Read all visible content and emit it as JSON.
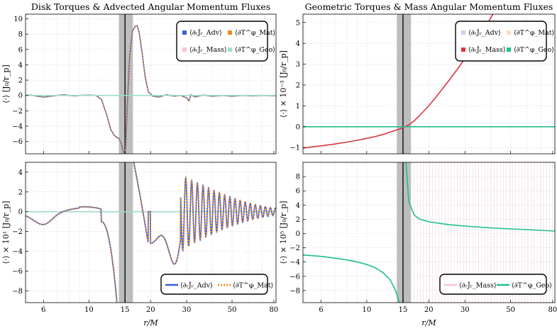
{
  "chart_data": [
    {
      "type": "line",
      "panel": "top-left",
      "title": "Disk Torques & Advected Angular Momentum Fluxes",
      "ylabel": "⟨·⟩ [J₀/r_p]",
      "xscale": "log",
      "xlim": [
        4.9,
        82
      ],
      "ylim": [
        -7.6,
        10.6
      ],
      "yticks": [
        -6,
        -4,
        -2,
        0,
        2,
        4,
        6,
        8,
        10
      ],
      "shaded_band": [
        14.0,
        16.4
      ],
      "vline": 15,
      "legend_position": "top-right",
      "legend": [
        "⟨∂ᵣJ̇ᵣ_Adv⟩",
        "⟨∂T^φ_Mat⟩",
        "⟨∂ᵣJ̇ᵣ_Mass⟩",
        "⟨∂T^φ_Geo⟩"
      ],
      "series": [
        {
          "name": "⟨∂ᵣJ̇ᵣ_Adv⟩",
          "color": "#3a5fd9",
          "style": "solid",
          "points": [
            [
              4.9,
              0.0
            ],
            [
              5.2,
              0.05
            ],
            [
              5.6,
              -0.1
            ],
            [
              6.0,
              -0.2
            ],
            [
              6.5,
              -0.1
            ],
            [
              7.0,
              0.0
            ],
            [
              7.5,
              0.1
            ],
            [
              8.0,
              0.0
            ],
            [
              8.5,
              -0.05
            ],
            [
              9.0,
              0.0
            ],
            [
              10.0,
              0.05
            ],
            [
              10.8,
              0.0
            ],
            [
              11.5,
              -0.5
            ],
            [
              12.2,
              -2.5
            ],
            [
              12.8,
              -4.5
            ],
            [
              13.4,
              -5.3
            ],
            [
              14.0,
              -5.6
            ],
            [
              14.4,
              -6.3
            ],
            [
              14.8,
              -7.6
            ],
            [
              15.1,
              -7.0
            ],
            [
              15.4,
              -1.0
            ],
            [
              15.8,
              5.0
            ],
            [
              16.3,
              8.4
            ],
            [
              16.8,
              9.0
            ],
            [
              17.2,
              9.1
            ],
            [
              17.6,
              8.2
            ],
            [
              18.2,
              5.5
            ],
            [
              18.8,
              2.5
            ],
            [
              19.5,
              0.5
            ],
            [
              20.5,
              -0.1
            ],
            [
              22.0,
              -0.2
            ],
            [
              24.0,
              0.1
            ],
            [
              26.0,
              -0.1
            ],
            [
              28.0,
              0.0
            ],
            [
              30.0,
              -0.3
            ],
            [
              30.8,
              -0.7
            ],
            [
              31.5,
              0.1
            ],
            [
              33.0,
              -0.2
            ],
            [
              36.0,
              0.05
            ],
            [
              40.0,
              -0.1
            ],
            [
              45.0,
              0.0
            ],
            [
              50.0,
              -0.1
            ],
            [
              56.0,
              0.0
            ],
            [
              63.0,
              -0.05
            ],
            [
              70.0,
              0.0
            ],
            [
              82.0,
              -0.05
            ]
          ]
        },
        {
          "name": "⟨∂T^φ_Mat⟩",
          "color": "#f08a1d",
          "style": "dotted",
          "points": [
            [
              4.9,
              0.0
            ],
            [
              5.2,
              0.05
            ],
            [
              5.6,
              -0.1
            ],
            [
              6.0,
              -0.2
            ],
            [
              6.5,
              -0.1
            ],
            [
              7.0,
              0.0
            ],
            [
              7.5,
              0.1
            ],
            [
              8.0,
              0.0
            ],
            [
              8.5,
              -0.05
            ],
            [
              9.0,
              0.0
            ],
            [
              10.0,
              0.05
            ],
            [
              10.8,
              0.0
            ],
            [
              11.5,
              -0.5
            ],
            [
              12.2,
              -2.5
            ],
            [
              12.8,
              -4.5
            ],
            [
              13.4,
              -5.3
            ],
            [
              14.0,
              -5.6
            ],
            [
              14.4,
              -6.3
            ],
            [
              14.8,
              -7.6
            ],
            [
              15.1,
              -7.0
            ],
            [
              15.4,
              -1.0
            ],
            [
              15.8,
              5.0
            ],
            [
              16.3,
              8.4
            ],
            [
              16.8,
              9.0
            ],
            [
              17.2,
              9.1
            ],
            [
              17.6,
              8.2
            ],
            [
              18.2,
              5.5
            ],
            [
              18.8,
              2.5
            ],
            [
              19.5,
              0.5
            ],
            [
              20.5,
              -0.1
            ],
            [
              22.0,
              -0.2
            ],
            [
              24.0,
              0.1
            ],
            [
              26.0,
              -0.1
            ],
            [
              28.0,
              0.0
            ],
            [
              30.0,
              -0.3
            ],
            [
              30.8,
              -0.7
            ],
            [
              31.5,
              0.1
            ],
            [
              33.0,
              -0.2
            ],
            [
              36.0,
              0.05
            ],
            [
              40.0,
              -0.1
            ],
            [
              45.0,
              0.0
            ],
            [
              50.0,
              -0.1
            ],
            [
              56.0,
              0.0
            ],
            [
              63.0,
              -0.05
            ],
            [
              70.0,
              0.0
            ],
            [
              82.0,
              -0.05
            ]
          ]
        },
        {
          "name": "⟨∂T^φ_Geo⟩",
          "color": "#9fdcc9",
          "style": "solid",
          "points": [
            [
              4.9,
              0.0
            ],
            [
              14.9,
              0.0
            ],
            [
              15.3,
              0.0
            ],
            [
              82.0,
              0.0
            ]
          ]
        }
      ]
    },
    {
      "type": "line",
      "panel": "top-right",
      "title": "Geometric Torques & Mass Angular Momentum Fluxes",
      "ylabel": "⟨·⟩ × 10⁻³ [J₀/r_p]",
      "xscale": "log",
      "xlim": [
        4.9,
        82
      ],
      "ylim": [
        -1.3,
        5.4
      ],
      "yticks": [
        -1,
        0,
        1,
        2,
        3,
        4,
        5
      ],
      "shaded_band": [
        14.0,
        16.4
      ],
      "vline": 15,
      "legend_position": "top-right",
      "legend": [
        "⟨∂ᵣJ̇ᵣ_Adv⟩",
        "⟨∂T^φ_Mat⟩",
        "⟨∂ᵣJ̇ᵣ_Mass⟩",
        "⟨∂T^φ_Geo⟩"
      ],
      "series": [
        {
          "name": "⟨∂ᵣJ̇ᵣ_Mass⟩",
          "color": "#d9343d",
          "style": "solid",
          "points": [
            [
              4.9,
              -1.02
            ],
            [
              6.0,
              -0.92
            ],
            [
              7.0,
              -0.83
            ],
            [
              8.0,
              -0.74
            ],
            [
              9.0,
              -0.65
            ],
            [
              10.0,
              -0.56
            ],
            [
              11.0,
              -0.47
            ],
            [
              12.0,
              -0.37
            ],
            [
              13.0,
              -0.26
            ],
            [
              14.0,
              -0.15
            ],
            [
              15.0,
              -0.05
            ],
            [
              16.0,
              0.08
            ],
            [
              17.0,
              0.28
            ],
            [
              18.0,
              0.52
            ],
            [
              20.0,
              1.0
            ],
            [
              22.0,
              1.5
            ],
            [
              25.0,
              2.2
            ],
            [
              28.0,
              2.85
            ],
            [
              31.0,
              3.5
            ],
            [
              35.0,
              4.3
            ],
            [
              38.0,
              4.85
            ],
            [
              41.0,
              5.4
            ]
          ]
        },
        {
          "name": "⟨∂T^φ_Geo⟩",
          "color": "#1fbf8f",
          "style": "solid",
          "points": [
            [
              4.9,
              0.0
            ],
            [
              82.0,
              0.0
            ]
          ]
        }
      ]
    },
    {
      "type": "line",
      "panel": "bottom-left",
      "ylabel": "⟨·⟩ × 10¹ [J₀/r_p]",
      "xlabel": "r/M",
      "xscale": "log",
      "xlim": [
        4.9,
        82
      ],
      "ylim": [
        -9.2,
        5.0
      ],
      "yticks": [
        -8,
        -6,
        -4,
        -2,
        0,
        2,
        4
      ],
      "xticks": [
        6,
        10,
        15,
        20,
        30,
        50,
        80
      ],
      "shaded_band": [
        14.0,
        16.4
      ],
      "vline": 15,
      "legend_position": "bottom-right",
      "legend": [
        "⟨∂ᵣJ̇ᵣ_Adv⟩",
        "⟨∂T^φ_Mat⟩"
      ],
      "series": [
        {
          "name": "⟨∂ᵣJ̇ᵣ_Adv⟩",
          "color": "#3a5fd9",
          "style": "solid",
          "points": []
        },
        {
          "name": "⟨∂T^φ_Mat⟩",
          "color": "#f08a1d",
          "style": "dotted",
          "points": []
        },
        {
          "name": "⟨∂T^φ_Geo⟩",
          "color": "#9fdcc9",
          "style": "solid",
          "points": [
            [
              4.9,
              0.0
            ],
            [
              82.0,
              0.0
            ]
          ]
        }
      ]
    },
    {
      "type": "line",
      "panel": "bottom-right",
      "ylabel": "⟨·⟩ × 10⁵ [J₀/r_p]",
      "xlabel": "r/M",
      "xscale": "log",
      "xlim": [
        4.9,
        82
      ],
      "ylim": [
        -9.7,
        10.0
      ],
      "yticks": [
        -8,
        -6,
        -4,
        -2,
        0,
        2,
        4,
        6,
        8
      ],
      "xticks": [
        6,
        10,
        15,
        20,
        30,
        50,
        80
      ],
      "shaded_band": [
        14.0,
        16.4
      ],
      "vline": 15,
      "legend_position": "bottom-right",
      "legend": [
        "⟨∂ᵣJ̇ᵣ_Mass⟩",
        "⟨∂T^φ_Geo⟩"
      ],
      "series": [
        {
          "name": "⟨∂T^φ_Geo⟩",
          "color": "#1fbf8f",
          "style": "solid",
          "points": [
            [
              4.9,
              -3.0
            ],
            [
              6.0,
              -3.2
            ],
            [
              7.0,
              -3.45
            ],
            [
              8.0,
              -3.7
            ],
            [
              9.0,
              -4.0
            ],
            [
              10.0,
              -4.35
            ],
            [
              11.0,
              -4.8
            ],
            [
              12.0,
              -5.5
            ],
            [
              13.0,
              -6.5
            ],
            [
              13.8,
              -8.0
            ],
            [
              14.4,
              -9.7
            ]
          ],
          "points_right": [
            [
              15.5,
              10.0
            ],
            [
              16.0,
              4.5
            ],
            [
              17.0,
              2.6
            ],
            [
              18.0,
              2.05
            ],
            [
              20.0,
              1.65
            ],
            [
              25.0,
              1.25
            ],
            [
              30.0,
              1.05
            ],
            [
              40.0,
              0.8
            ],
            [
              50.0,
              0.65
            ],
            [
              60.0,
              0.55
            ],
            [
              70.0,
              0.45
            ],
            [
              82.0,
              0.35
            ]
          ]
        },
        {
          "name": "⟨∂ᵣJ̇ᵣ_Mass⟩",
          "color": "#f7c3cc",
          "style": "solid",
          "points": []
        }
      ]
    }
  ]
}
